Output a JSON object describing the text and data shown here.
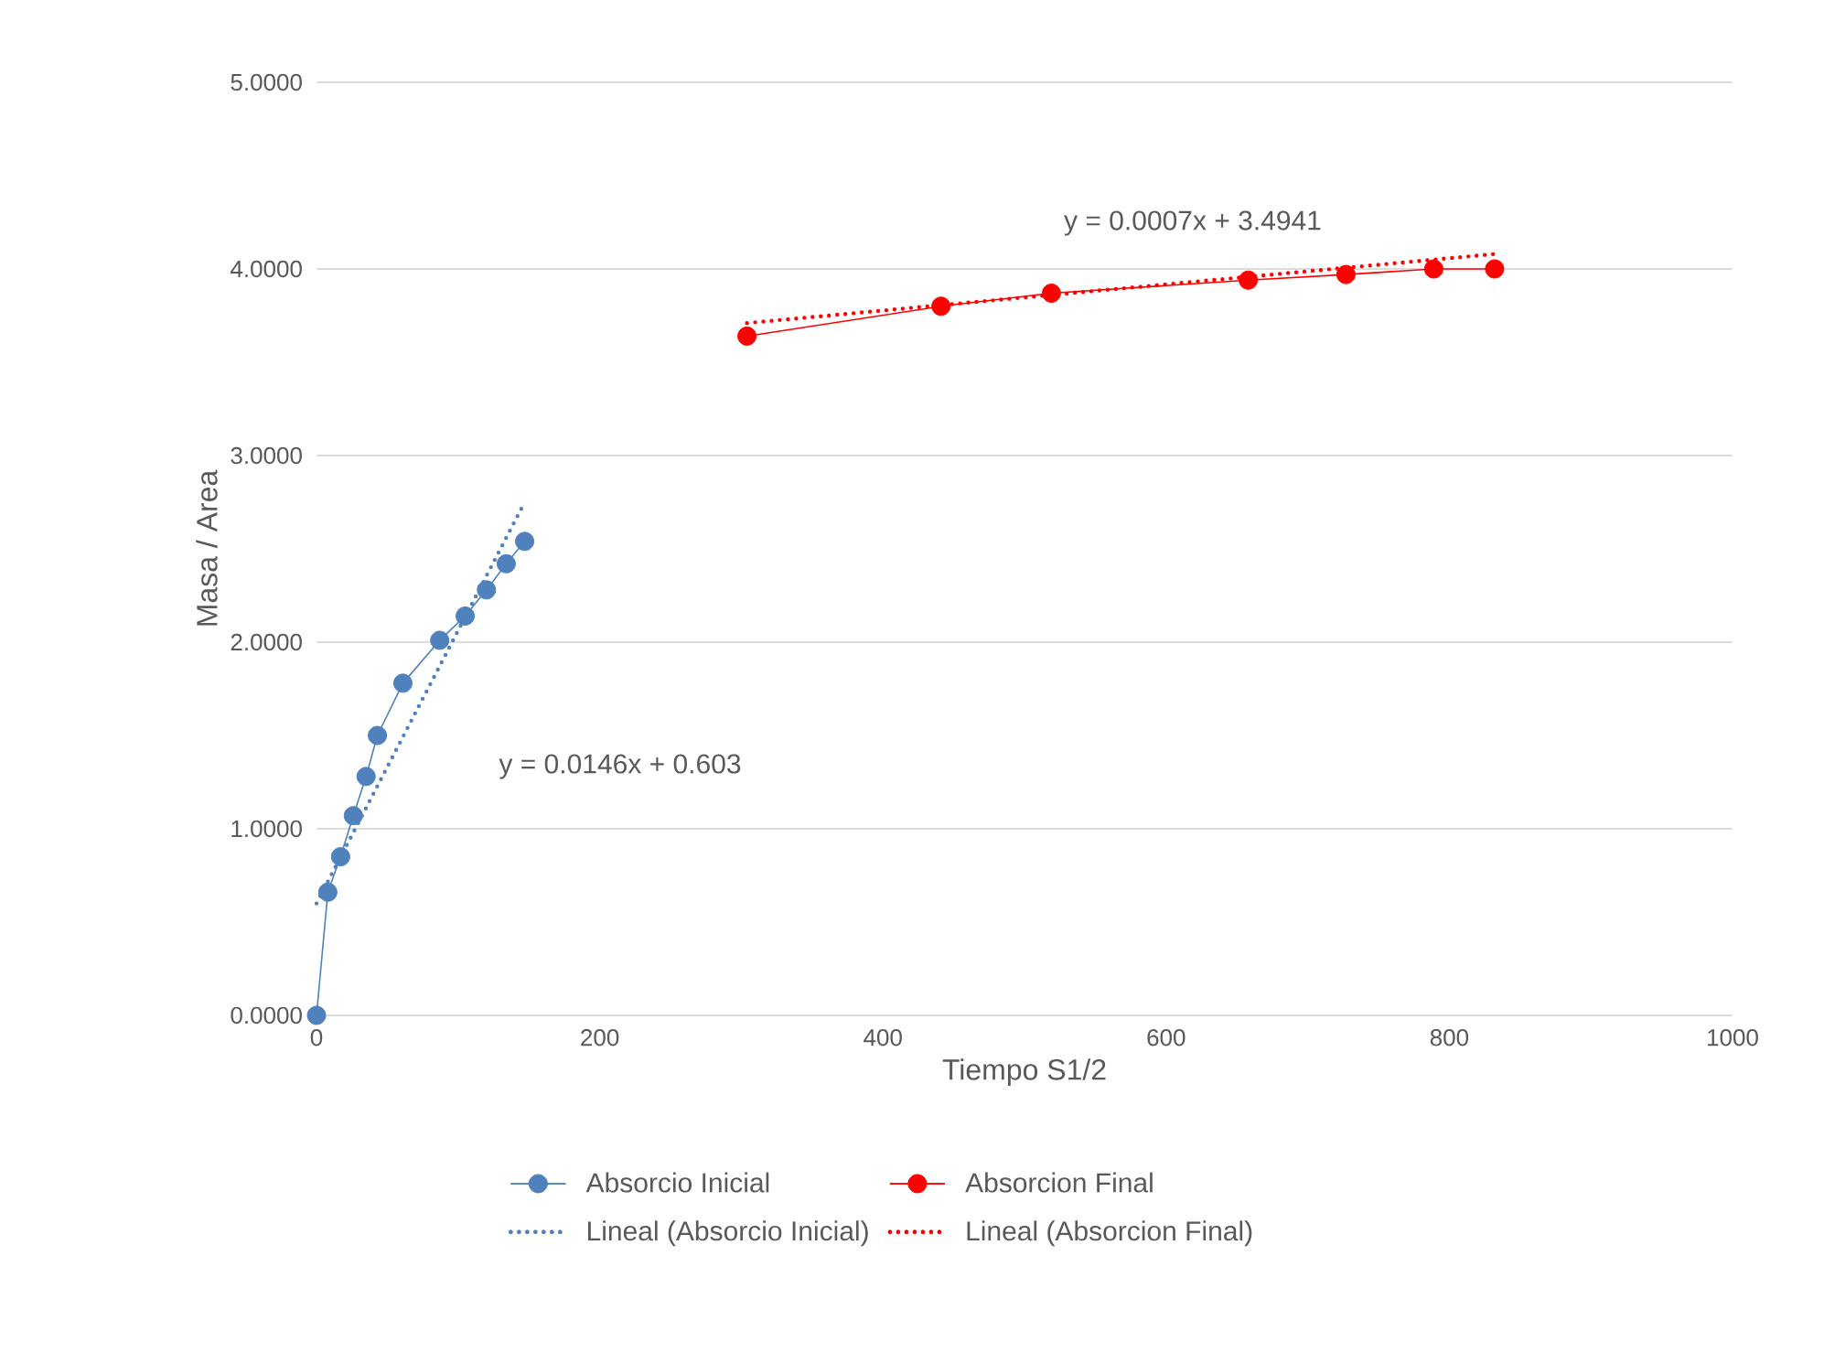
{
  "chart_data": {
    "type": "line",
    "xlabel": "Tiempo S1/2",
    "ylabel": "Masa / Area",
    "xlim": [
      0,
      1000
    ],
    "xticks": [
      0,
      200,
      400,
      600,
      800,
      1000
    ],
    "ylim": [
      0,
      5
    ],
    "yticks": [
      {
        "value": 0,
        "label": "0.0000"
      },
      {
        "value": 1,
        "label": "1.0000"
      },
      {
        "value": 2,
        "label": "2.0000"
      },
      {
        "value": 3,
        "label": "3.0000"
      },
      {
        "value": 4,
        "label": "4.0000"
      },
      {
        "value": 5,
        "label": "5.0000"
      }
    ],
    "grid": "y",
    "legend": "bottom",
    "marker": "circle",
    "line_style": "solid",
    "series": [
      {
        "name": "Absorcio Inicial",
        "color": "#4f81bd",
        "x": [
          0,
          8,
          17,
          26,
          35,
          43,
          61,
          87,
          105,
          120,
          134,
          147
        ],
        "values": [
          0,
          0.66,
          0.85,
          1.07,
          1.28,
          1.5,
          1.78,
          2.01,
          2.14,
          2.28,
          2.42,
          2.54
        ]
      },
      {
        "name": "Absorcion Final",
        "color": "#ff0000",
        "x": [
          304,
          441,
          519,
          658,
          727,
          789,
          832
        ],
        "values": [
          3.64,
          3.8,
          3.87,
          3.94,
          3.97,
          4.0,
          4.0
        ]
      },
      {
        "name": "Lineal (Absorcio Inicial)",
        "marker": "none",
        "line_style": "dotted",
        "color": "#4f81bd",
        "x": [
          0,
          147
        ],
        "values": [
          0.6,
          2.75
        ]
      },
      {
        "name": "Lineal (Absorcion Final)",
        "marker": "none",
        "line_style": "dotted",
        "color": "#ff0000",
        "x": [
          304,
          832
        ],
        "values": [
          3.71,
          4.08
        ]
      }
    ],
    "annotations": [
      "y = 0.0146x + 0.603",
      "y = 0.0007x + 3.4941"
    ]
  }
}
